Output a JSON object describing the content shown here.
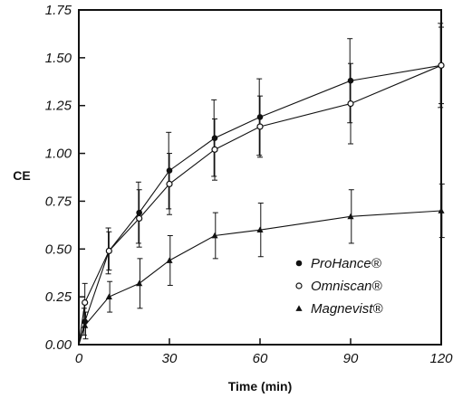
{
  "chart_data": {
    "type": "line",
    "title": "",
    "xlabel": "Time (min)",
    "ylabel": "CE",
    "xlim": [
      0,
      120
    ],
    "ylim": [
      0,
      1.75
    ],
    "x_ticks": [
      0,
      30,
      60,
      90,
      120
    ],
    "y_ticks": [
      0.0,
      0.25,
      0.5,
      0.75,
      1.0,
      1.25,
      1.5,
      1.75
    ],
    "x_tick_labels": [
      "0",
      "30",
      "60",
      "90",
      "120"
    ],
    "y_tick_labels": [
      "0.00",
      "0.25",
      "0.50",
      "0.75",
      "1.00",
      "1.25",
      "1.50",
      "1.75"
    ],
    "grid": false,
    "legend_position": "bottom-right",
    "x": [
      0,
      2,
      10,
      20,
      30,
      45,
      60,
      90,
      120
    ],
    "series": [
      {
        "name": "ProHance®",
        "marker": "filled-circle",
        "values": [
          0,
          0.12,
          0.49,
          0.69,
          0.91,
          1.08,
          1.19,
          1.38,
          1.46
        ],
        "errors": [
          0,
          0.07,
          0.12,
          0.16,
          0.2,
          0.2,
          0.2,
          0.22,
          0.22
        ]
      },
      {
        "name": "Omniscan®",
        "marker": "open-circle",
        "values": [
          0,
          0.22,
          0.49,
          0.66,
          0.84,
          1.02,
          1.14,
          1.26,
          1.46
        ],
        "errors": [
          0,
          0.1,
          0.1,
          0.15,
          0.16,
          0.16,
          0.16,
          0.21,
          0.2
        ]
      },
      {
        "name": "Magnevist®",
        "marker": "filled-triangle",
        "values": [
          0,
          0.1,
          0.25,
          0.32,
          0.44,
          0.57,
          0.6,
          0.67,
          0.7
        ],
        "errors": [
          0,
          0.07,
          0.08,
          0.13,
          0.13,
          0.12,
          0.14,
          0.14,
          0.14
        ]
      }
    ]
  }
}
